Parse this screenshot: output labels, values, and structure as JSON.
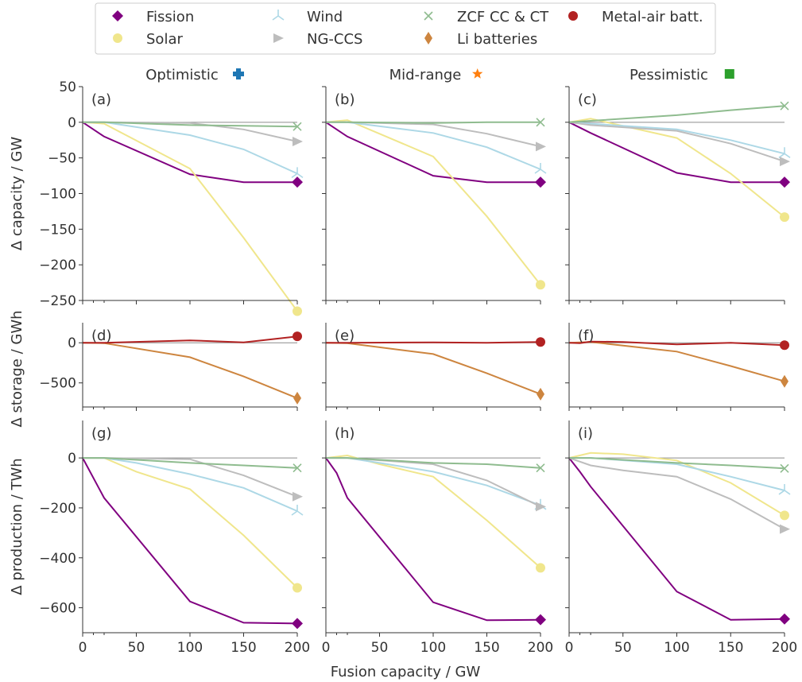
{
  "legend": {
    "entries": [
      {
        "key": "fission",
        "label": "Fission"
      },
      {
        "key": "wind",
        "label": "Wind"
      },
      {
        "key": "zcf",
        "label": "ZCF CC & CT"
      },
      {
        "key": "metalair",
        "label": "Metal-air batt."
      },
      {
        "key": "solar",
        "label": "Solar"
      },
      {
        "key": "ngccs",
        "label": "NG-CCS"
      },
      {
        "key": "li",
        "label": "Li batteries"
      }
    ]
  },
  "styles": {
    "fission": {
      "color": "#800080",
      "marker": "diamond"
    },
    "solar": {
      "color": "#f0e68c",
      "marker": "circle"
    },
    "wind": {
      "color": "#add8e6",
      "marker": "tri-up"
    },
    "ngccs": {
      "color": "#bdbdbd",
      "marker": "triangle-right"
    },
    "zcf": {
      "color": "#8fbc8f",
      "marker": "x"
    },
    "li": {
      "color": "#cd853f",
      "marker": "thin-diamond"
    },
    "metalair": {
      "color": "#b22222",
      "marker": "circle"
    }
  },
  "columns": [
    {
      "title": "Optimistic",
      "icon": "plus-icon",
      "icon_color": "#1f77b4"
    },
    {
      "title": "Mid-range",
      "icon": "star-icon",
      "icon_color": "#ff7f0e"
    },
    {
      "title": "Pessimistic",
      "icon": "square-icon",
      "icon_color": "#2ca02c"
    }
  ],
  "row_labels": [
    "Δ capacity / GW",
    "Δ storage / GWh",
    "Δ production / TWh"
  ],
  "xlabel": "Fusion capacity / GW",
  "chart_data": {
    "type": "line",
    "x_ticks": [
      0,
      50,
      100,
      150,
      200
    ],
    "xlim": [
      0,
      200
    ],
    "rows": [
      {
        "ylim": [
          -250,
          50
        ],
        "yticks": [
          50,
          0,
          -50,
          -100,
          -150,
          -200,
          -250
        ]
      },
      {
        "ylim": [
          -800,
          250
        ],
        "yticks": [
          0,
          -500
        ]
      },
      {
        "ylim": [
          -700,
          150
        ],
        "yticks": [
          0,
          -200,
          -400,
          -600
        ]
      }
    ],
    "panels": [
      {
        "label": "(a)",
        "row": 0,
        "col": 0,
        "series": [
          {
            "key": "fission",
            "x": [
              0,
              20,
              100,
              150,
              200
            ],
            "y": [
              0,
              -20,
              -73,
              -84,
              -84
            ]
          },
          {
            "key": "solar",
            "x": [
              0,
              20,
              100,
              150,
              200
            ],
            "y": [
              0,
              -2,
              -65,
              -162,
              -265
            ]
          },
          {
            "key": "wind",
            "x": [
              0,
              20,
              100,
              150,
              200
            ],
            "y": [
              0,
              0,
              -18,
              -38,
              -72
            ]
          },
          {
            "key": "ngccs",
            "x": [
              0,
              20,
              100,
              150,
              200
            ],
            "y": [
              0,
              0,
              -1,
              -10,
              -27
            ]
          },
          {
            "key": "zcf",
            "x": [
              0,
              20,
              100,
              150,
              200
            ],
            "y": [
              0,
              0,
              -4,
              -5,
              -6
            ]
          }
        ]
      },
      {
        "label": "(b)",
        "row": 0,
        "col": 1,
        "series": [
          {
            "key": "fission",
            "x": [
              0,
              20,
              100,
              150,
              200
            ],
            "y": [
              0,
              -20,
              -75,
              -84,
              -84
            ]
          },
          {
            "key": "solar",
            "x": [
              0,
              20,
              100,
              150,
              200
            ],
            "y": [
              0,
              3,
              -48,
              -132,
              -228
            ]
          },
          {
            "key": "wind",
            "x": [
              0,
              20,
              100,
              150,
              200
            ],
            "y": [
              0,
              0,
              -15,
              -35,
              -66
            ]
          },
          {
            "key": "ngccs",
            "x": [
              0,
              20,
              100,
              150,
              200
            ],
            "y": [
              0,
              0,
              -3,
              -16,
              -34
            ]
          },
          {
            "key": "zcf",
            "x": [
              0,
              20,
              100,
              150,
              200
            ],
            "y": [
              0,
              0,
              -1,
              0,
              0
            ]
          }
        ]
      },
      {
        "label": "(c)",
        "row": 0,
        "col": 2,
        "series": [
          {
            "key": "fission",
            "x": [
              0,
              20,
              100,
              150,
              200
            ],
            "y": [
              0,
              -15,
              -71,
              -84,
              -84
            ]
          },
          {
            "key": "solar",
            "x": [
              0,
              20,
              100,
              150,
              200
            ],
            "y": [
              0,
              5,
              -22,
              -72,
              -133
            ]
          },
          {
            "key": "wind",
            "x": [
              0,
              20,
              100,
              150,
              200
            ],
            "y": [
              0,
              -2,
              -10,
              -25,
              -44
            ]
          },
          {
            "key": "ngccs",
            "x": [
              0,
              20,
              100,
              150,
              200
            ],
            "y": [
              0,
              -4,
              -12,
              -30,
              -55
            ]
          },
          {
            "key": "zcf",
            "x": [
              0,
              20,
              100,
              150,
              200
            ],
            "y": [
              0,
              2,
              10,
              17,
              23
            ]
          }
        ]
      },
      {
        "label": "(d)",
        "row": 1,
        "col": 0,
        "series": [
          {
            "key": "li",
            "x": [
              0,
              20,
              100,
              150,
              200
            ],
            "y": [
              0,
              -5,
              -180,
              -420,
              -690
            ]
          },
          {
            "key": "metalair",
            "x": [
              0,
              20,
              100,
              150,
              200
            ],
            "y": [
              0,
              0,
              30,
              5,
              80
            ]
          }
        ]
      },
      {
        "label": "(e)",
        "row": 1,
        "col": 1,
        "series": [
          {
            "key": "li",
            "x": [
              0,
              20,
              100,
              150,
              200
            ],
            "y": [
              0,
              -5,
              -140,
              -380,
              -640
            ]
          },
          {
            "key": "metalair",
            "x": [
              0,
              20,
              100,
              150,
              200
            ],
            "y": [
              0,
              0,
              5,
              0,
              10
            ]
          }
        ]
      },
      {
        "label": "(f)",
        "row": 1,
        "col": 2,
        "series": [
          {
            "key": "li",
            "x": [
              0,
              20,
              100,
              150,
              200
            ],
            "y": [
              0,
              10,
              -110,
              -290,
              -480
            ]
          },
          {
            "key": "metalair",
            "x": [
              0,
              10,
              20,
              50,
              100,
              150,
              200
            ],
            "y": [
              0,
              -5,
              15,
              10,
              -20,
              0,
              -30
            ]
          }
        ]
      },
      {
        "label": "(g)",
        "row": 2,
        "col": 0,
        "series": [
          {
            "key": "fission",
            "x": [
              0,
              20,
              100,
              150,
              200
            ],
            "y": [
              0,
              -160,
              -575,
              -660,
              -663
            ]
          },
          {
            "key": "solar",
            "x": [
              0,
              20,
              50,
              100,
              150,
              200
            ],
            "y": [
              0,
              0,
              -55,
              -125,
              -310,
              -520
            ]
          },
          {
            "key": "wind",
            "x": [
              0,
              20,
              50,
              100,
              150,
              200
            ],
            "y": [
              0,
              0,
              -20,
              -65,
              -120,
              -213
            ]
          },
          {
            "key": "ngccs",
            "x": [
              0,
              20,
              100,
              150,
              200
            ],
            "y": [
              0,
              0,
              -5,
              -70,
              -155
            ]
          },
          {
            "key": "zcf",
            "x": [
              0,
              20,
              100,
              150,
              200
            ],
            "y": [
              0,
              0,
              -20,
              -30,
              -40
            ]
          }
        ]
      },
      {
        "label": "(h)",
        "row": 2,
        "col": 1,
        "series": [
          {
            "key": "fission",
            "x": [
              0,
              10,
              20,
              100,
              150,
              200
            ],
            "y": [
              0,
              -60,
              -160,
              -578,
              -650,
              -648
            ]
          },
          {
            "key": "solar",
            "x": [
              0,
              20,
              50,
              100,
              150,
              200
            ],
            "y": [
              0,
              10,
              -25,
              -75,
              -250,
              -440
            ]
          },
          {
            "key": "wind",
            "x": [
              0,
              20,
              50,
              100,
              150,
              200
            ],
            "y": [
              0,
              0,
              -20,
              -55,
              -110,
              -190
            ]
          },
          {
            "key": "ngccs",
            "x": [
              0,
              20,
              100,
              150,
              200
            ],
            "y": [
              0,
              0,
              -25,
              -90,
              -195
            ]
          },
          {
            "key": "zcf",
            "x": [
              0,
              20,
              100,
              150,
              200
            ],
            "y": [
              0,
              0,
              -20,
              -25,
              -40
            ]
          }
        ]
      },
      {
        "label": "(i)",
        "row": 2,
        "col": 2,
        "series": [
          {
            "key": "fission",
            "x": [
              0,
              10,
              20,
              100,
              150,
              200
            ],
            "y": [
              0,
              -55,
              -115,
              -535,
              -648,
              -645
            ]
          },
          {
            "key": "solar",
            "x": [
              0,
              20,
              50,
              100,
              150,
              200
            ],
            "y": [
              0,
              20,
              15,
              -10,
              -100,
              -230
            ]
          },
          {
            "key": "wind",
            "x": [
              0,
              20,
              100,
              150,
              200
            ],
            "y": [
              0,
              0,
              -25,
              -75,
              -130
            ]
          },
          {
            "key": "ngccs",
            "x": [
              0,
              20,
              50,
              100,
              150,
              200
            ],
            "y": [
              0,
              -30,
              -50,
              -75,
              -165,
              -285
            ]
          },
          {
            "key": "zcf",
            "x": [
              0,
              20,
              100,
              150,
              200
            ],
            "y": [
              0,
              0,
              -20,
              -30,
              -42
            ]
          }
        ]
      }
    ]
  }
}
